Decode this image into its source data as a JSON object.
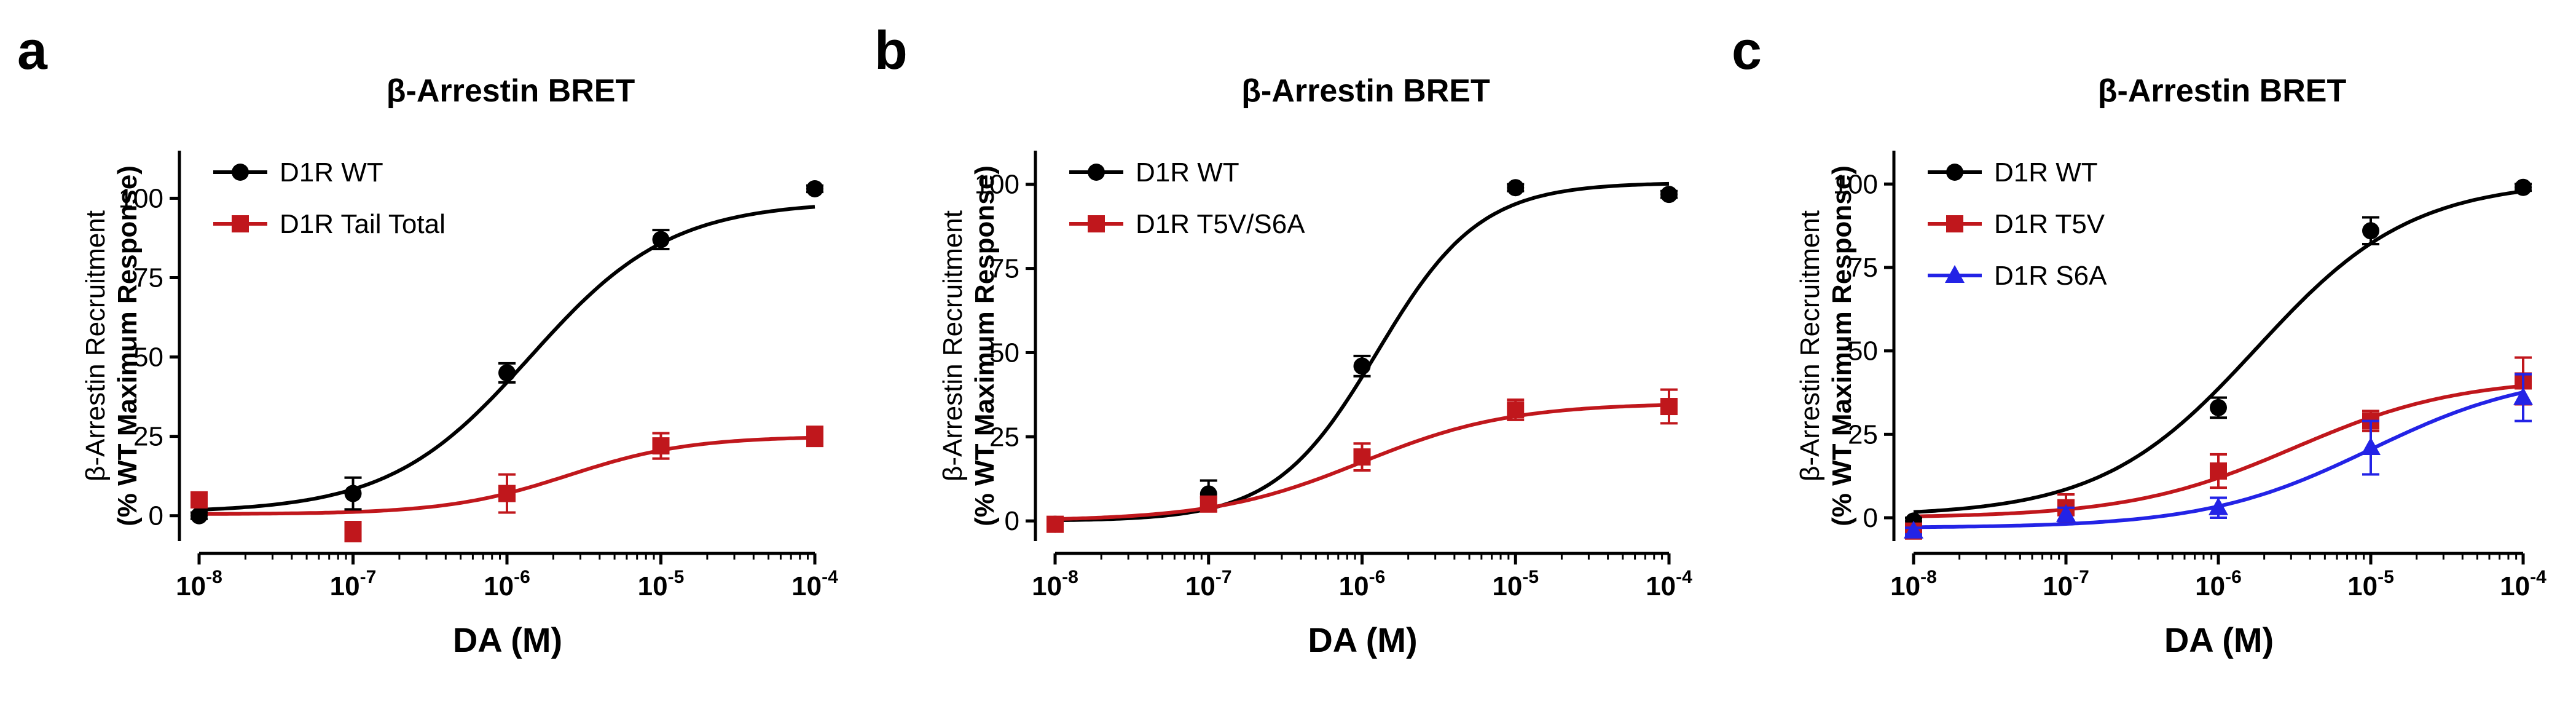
{
  "figure": {
    "x_tick_base": "10",
    "y_label_lines": [
      "β-Arrestin Recruitment",
      "(% WT Maximum Response)"
    ]
  },
  "chart_data": [
    {
      "type": "scatter",
      "panel": "a",
      "title": "β-Arrestin BRET",
      "xlabel": "DA (M)",
      "ylabel": "β-Arrestin Recruitment (% WT Maximum Response)",
      "xscale": "log",
      "xlim": [
        1e-08,
        0.0001
      ],
      "ylim": [
        -8,
        115
      ],
      "x_tick_exponents": [
        -8,
        -7,
        -6,
        -5,
        -4
      ],
      "y_ticks": [
        0,
        25,
        50,
        75,
        100
      ],
      "legend_position": "top-left",
      "series": [
        {
          "name": "D1R WT",
          "color": "#000000",
          "marker": "circle",
          "x": [
            1e-08,
            1e-07,
            1e-06,
            1e-05,
            0.0001
          ],
          "y": [
            0,
            7,
            45,
            87,
            103
          ],
          "error": [
            1,
            5,
            3,
            3,
            1
          ],
          "fit": {
            "bottom": 1,
            "top": 99,
            "log_ec50": -5.85,
            "hill": 0.95
          }
        },
        {
          "name": "D1R Tail Total",
          "color": "#c0171c",
          "marker": "square",
          "x": [
            1e-08,
            1e-07,
            1e-06,
            1e-05,
            0.0001
          ],
          "y": [
            5,
            -5,
            7,
            22,
            25
          ],
          "error": [
            1,
            3,
            6,
            4,
            3
          ],
          "fit": {
            "bottom": 0.5,
            "top": 25,
            "log_ec50": -5.6,
            "hill": 1.1
          }
        }
      ]
    },
    {
      "type": "scatter",
      "panel": "b",
      "title": "β-Arrestin BRET",
      "xlabel": "DA (M)",
      "ylabel": "β-Arrestin Recruitment (% WT Maximum Response)",
      "xscale": "log",
      "xlim": [
        1e-08,
        0.0001
      ],
      "ylim": [
        -6,
        110
      ],
      "x_tick_exponents": [
        -8,
        -7,
        -6,
        -5,
        -4
      ],
      "y_ticks": [
        0,
        25,
        50,
        75,
        100
      ],
      "legend_position": "top-left",
      "series": [
        {
          "name": "D1R WT",
          "color": "#000000",
          "marker": "circle",
          "x": [
            1e-08,
            1e-07,
            1e-06,
            1e-05,
            0.0001
          ],
          "y": [
            -1,
            8,
            46,
            99,
            97
          ],
          "error": [
            1,
            4,
            3,
            1,
            1
          ],
          "fit": {
            "bottom": 0,
            "top": 100.5,
            "log_ec50": -5.9,
            "hill": 1.3
          }
        },
        {
          "name": "D1R T5V/S6A",
          "color": "#c0171c",
          "marker": "square",
          "x": [
            1e-08,
            1e-07,
            1e-06,
            1e-05,
            0.0001
          ],
          "y": [
            -1,
            5,
            19,
            33,
            34
          ],
          "error": [
            1,
            2,
            4,
            3,
            5
          ],
          "fit": {
            "bottom": 0,
            "top": 35,
            "log_ec50": -6.0,
            "hill": 0.9
          }
        }
      ]
    },
    {
      "type": "scatter",
      "panel": "c",
      "title": "β-Arrestin BRET",
      "xlabel": "DA (M)",
      "ylabel": "β-Arrestin Recruitment (% WT Maximum Response)",
      "xscale": "log",
      "xlim": [
        1e-08,
        0.0001
      ],
      "ylim": [
        -7,
        110
      ],
      "x_tick_exponents": [
        -8,
        -7,
        -6,
        -5,
        -4
      ],
      "y_ticks": [
        0,
        25,
        50,
        75,
        100
      ],
      "legend_position": "top-left",
      "series": [
        {
          "name": "D1R WT",
          "color": "#000000",
          "marker": "circle",
          "x": [
            1e-08,
            1e-07,
            1e-06,
            1e-05,
            0.0001
          ],
          "y": [
            -1,
            2,
            33,
            86,
            99
          ],
          "error": [
            1,
            3,
            3,
            4,
            1
          ],
          "fit": {
            "bottom": 0.5,
            "top": 101,
            "log_ec50": -5.75,
            "hill": 0.85
          }
        },
        {
          "name": "D1R T5V",
          "color": "#c0171c",
          "marker": "square",
          "x": [
            1e-08,
            1e-07,
            1e-06,
            1e-05,
            0.0001
          ],
          "y": [
            -4,
            3,
            14,
            29,
            41
          ],
          "error": [
            1,
            4,
            5,
            3,
            7
          ],
          "fit": {
            "bottom": 0,
            "top": 42,
            "log_ec50": -5.5,
            "hill": 0.8
          }
        },
        {
          "name": "D1R S6A",
          "color": "#2323e6",
          "marker": "triangle",
          "x": [
            1e-08,
            1e-07,
            1e-06,
            1e-05,
            0.0001
          ],
          "y": [
            -4,
            1,
            3,
            21,
            36
          ],
          "error": [
            1,
            2,
            3,
            8,
            7
          ],
          "fit": {
            "bottom": -3,
            "top": 44,
            "log_ec50": -5.0,
            "hill": 0.8
          }
        }
      ]
    }
  ]
}
